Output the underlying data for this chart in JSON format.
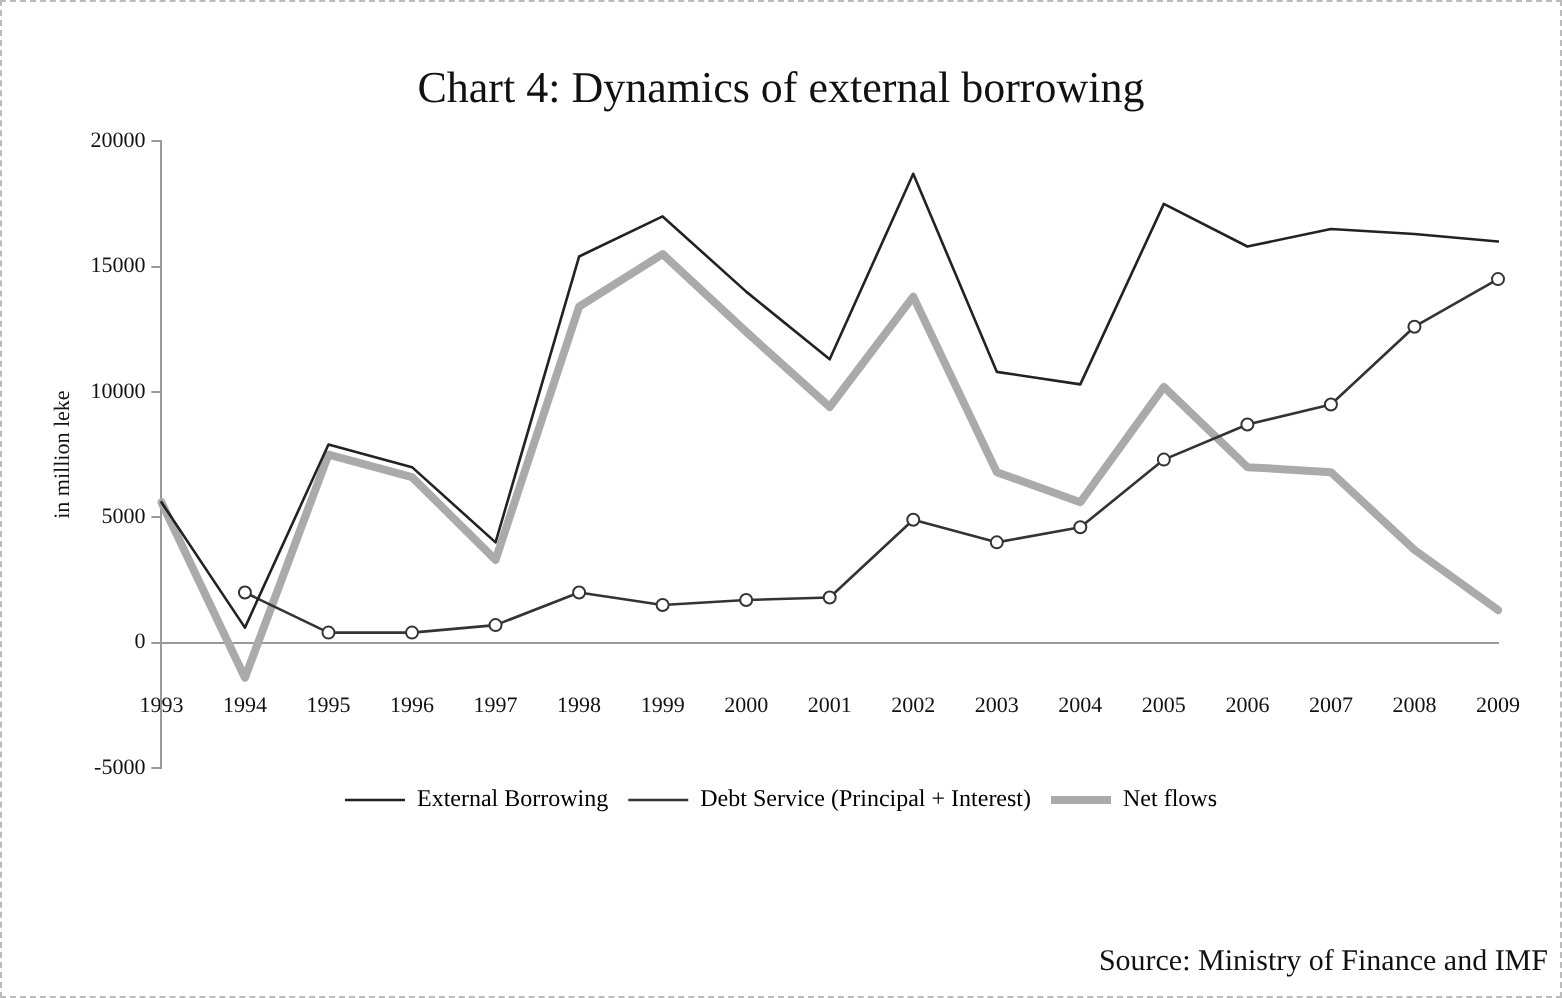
{
  "chart_data": {
    "type": "line",
    "title": "Chart 4: Dynamics of external borrowing",
    "ylabel": "in million leke",
    "categories": [
      "1993",
      "1994",
      "1995",
      "1996",
      "1997",
      "1998",
      "1999",
      "2000",
      "2001",
      "2002",
      "2003",
      "2004",
      "2005",
      "2006",
      "2007",
      "2008",
      "2009"
    ],
    "series": [
      {
        "name": "External Borrowing",
        "color": "#222222",
        "marker": "none",
        "values": [
          5600,
          600,
          7900,
          7000,
          4000,
          15400,
          17000,
          14000,
          11300,
          18700,
          10800,
          10300,
          17500,
          15800,
          16500,
          16300,
          16000
        ]
      },
      {
        "name": "Debt Service (Principal + Interest)",
        "color": "#333333",
        "marker": "circle",
        "values": [
          null,
          2000,
          400,
          400,
          700,
          2000,
          1500,
          1700,
          1800,
          4900,
          4000,
          4600,
          7300,
          8700,
          9500,
          12600,
          14500
        ]
      },
      {
        "name": "Net flows",
        "color": "#aaaaaa",
        "marker": "none",
        "values": [
          5600,
          -1400,
          7500,
          6600,
          3300,
          13400,
          15500,
          12400,
          9400,
          13800,
          6800,
          5600,
          10200,
          7000,
          6800,
          3700,
          1300
        ]
      }
    ],
    "ylim": [
      -5000,
      20000
    ],
    "yticks": [
      -5000,
      0,
      5000,
      10000,
      15000,
      20000
    ],
    "grid": false,
    "legend": "bottom",
    "annotations": [
      "Source: Ministry of Finance and IMF"
    ]
  }
}
